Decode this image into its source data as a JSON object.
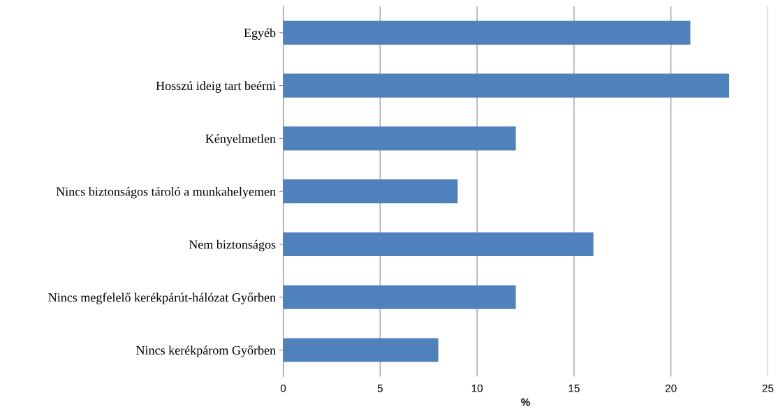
{
  "chart_data": {
    "type": "bar",
    "orientation": "horizontal",
    "xlabel": "%",
    "categories": [
      "Egyéb",
      "Hosszú ideig tart beérni",
      "Kényelmetlen",
      "Nincs biztonságos tároló a munkahelyemen",
      "Nem biztonságos",
      "Nincs megfelelő kerékpárút-hálózat Győrben",
      "Nincs kerékpárom Győrben"
    ],
    "values": [
      21,
      23,
      12,
      9,
      16,
      12,
      8
    ],
    "color": "#4f81bd",
    "xlim": [
      0,
      25
    ],
    "xticks": [
      0,
      5,
      10,
      15,
      20,
      25
    ],
    "grid": "x",
    "legend": false
  }
}
